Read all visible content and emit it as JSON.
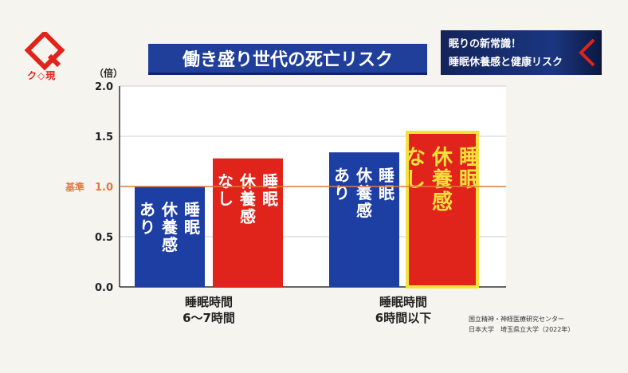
{
  "brand": {
    "logo_text": "ク◇現",
    "icon": "q-diamond-logo-icon",
    "color": "#e0241b"
  },
  "topic": {
    "line1": "眠りの新常識！",
    "line2": "睡眠休養感と健康リスク",
    "icon": "chevron-left-icon"
  },
  "source": {
    "line1": "国立精神・神経医療研究センター",
    "line2": "日本大学　埼玉県立大学（2022年）"
  },
  "chart_data": {
    "type": "bar",
    "title": "働き盛り世代の死亡リスク",
    "ylabel": "（倍）",
    "ylim": [
      0,
      2.0
    ],
    "yticks": [
      "0.0",
      "0.5",
      "1.0",
      "1.5",
      "2.0"
    ],
    "reference": {
      "label": "基準",
      "value": 1.0,
      "color": "#e07a3a"
    },
    "grid": "horizontal",
    "groups": [
      {
        "label_lines": [
          "睡眠時間",
          "6〜7時間"
        ],
        "bars": [
          {
            "label": "睡眠休養感あり",
            "lines": [
              "睡眠",
              "休養感",
              "あり"
            ],
            "value": 1.0,
            "color": "#1d3ea3",
            "text_color": "#ffffff"
          },
          {
            "label": "睡眠休養感なし",
            "lines": [
              "睡眠",
              "休養感",
              "なし"
            ],
            "value": 1.28,
            "color": "#e0241b",
            "text_color": "#ffffff"
          }
        ]
      },
      {
        "label_lines": [
          "睡眠時間",
          "6時間以下"
        ],
        "bars": [
          {
            "label": "睡眠休養感あり",
            "lines": [
              "睡眠",
              "休養感",
              "あり"
            ],
            "value": 1.34,
            "color": "#1d3ea3",
            "text_color": "#ffffff"
          },
          {
            "label": "睡眠休養感なし",
            "lines": [
              "睡眠",
              "休養感",
              "なし"
            ],
            "value": 1.54,
            "color": "#e0241b",
            "text_color": "#f6e13c",
            "highlight": "#f6e13c"
          }
        ]
      }
    ]
  }
}
